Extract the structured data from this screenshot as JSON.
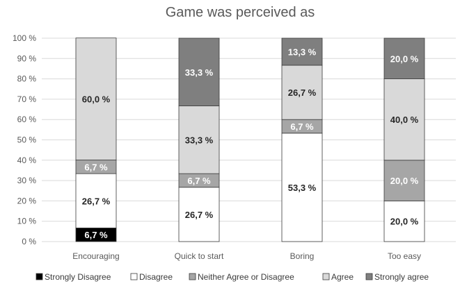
{
  "chart_data": {
    "type": "bar",
    "stacked": true,
    "title": "Game was perceived as",
    "xlabel": "",
    "ylabel": "",
    "ylim": [
      0,
      100
    ],
    "yticks": [
      "0 %",
      "10 %",
      "20 %",
      "30 %",
      "40 %",
      "50 %",
      "60 %",
      "70 %",
      "80 %",
      "90 %",
      "100 %"
    ],
    "grid": true,
    "legend_position": "bottom",
    "categories": [
      "Encouraging",
      "Quick to start",
      "Boring",
      "Too easy"
    ],
    "series": [
      {
        "name": "Strongly Disagree",
        "color": "#000000",
        "label_color": "#ffffff",
        "values": [
          6.7,
          0,
          0,
          0
        ],
        "labels": [
          "6,7 %",
          "",
          "",
          ""
        ]
      },
      {
        "name": "Disagree",
        "color": "#ffffff",
        "label_color": "#262626",
        "values": [
          26.7,
          26.7,
          53.3,
          20.0
        ],
        "labels": [
          "26,7 %",
          "26,7 %",
          "53,3 %",
          "20,0 %"
        ]
      },
      {
        "name": "Neither Agree or Disagree",
        "color": "#a6a6a6",
        "label_color": "#ffffff",
        "values": [
          6.7,
          6.7,
          6.7,
          20.0
        ],
        "labels": [
          "6,7 %",
          "6,7 %",
          "6,7 %",
          "20,0 %"
        ]
      },
      {
        "name": "Agree",
        "color": "#d9d9d9",
        "label_color": "#262626",
        "values": [
          60.0,
          33.3,
          26.7,
          40.0
        ],
        "labels": [
          "60,0 %",
          "33,3 %",
          "26,7 %",
          "40,0 %"
        ]
      },
      {
        "name": "Strongly agree",
        "color": "#7f7f7f",
        "label_color": "#ffffff",
        "values": [
          0,
          33.3,
          13.3,
          20.0
        ],
        "labels": [
          "",
          "33,3 %",
          "13,3 %",
          "20,0 %"
        ]
      }
    ]
  }
}
